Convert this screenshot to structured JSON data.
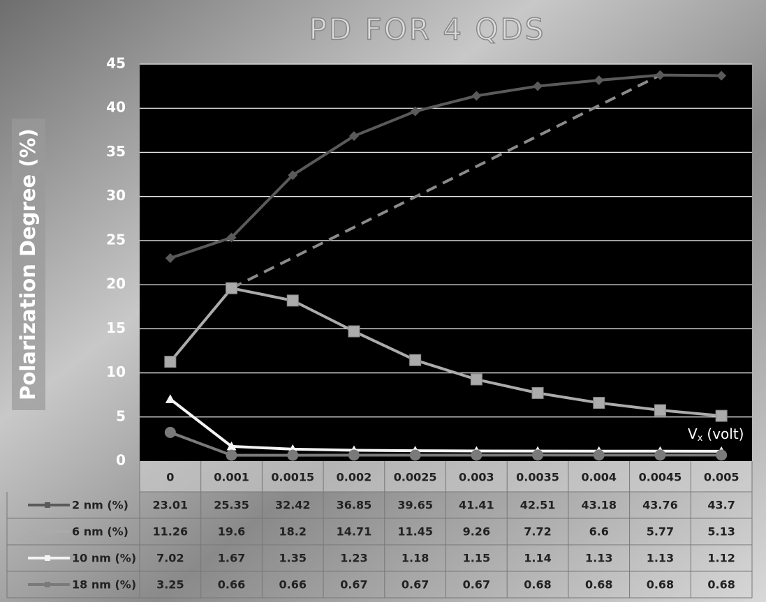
{
  "chart_data": {
    "type": "line",
    "title": "PD FOR 4 QDS",
    "y_label": "Polarization Degree (%)",
    "x_label": [
      "V",
      "x",
      "(volt)"
    ],
    "categories": [
      "0",
      "0.001",
      "0.0015",
      "0.002",
      "0.0025",
      "0.003",
      "0.0035",
      "0.004",
      "0.0045",
      "0.005"
    ],
    "ylim": [
      0,
      45
    ],
    "yticks": [
      0,
      5,
      10,
      15,
      20,
      25,
      30,
      35,
      40,
      45
    ],
    "grid": true,
    "series": [
      {
        "name": "2 nm (%)",
        "color": "#5a5a5a",
        "marker": "diamond",
        "values": [
          23.01,
          25.35,
          32.42,
          36.85,
          39.65,
          41.41,
          42.51,
          43.18,
          43.76,
          43.7
        ]
      },
      {
        "name": "6 nm (%)",
        "color": "#ababab",
        "marker": "square",
        "values": [
          11.26,
          19.6,
          18.2,
          14.71,
          11.45,
          9.26,
          7.72,
          6.6,
          5.77,
          5.13
        ]
      },
      {
        "name": "10 nm (%)",
        "color": "#f4f4f4",
        "marker": "triangle",
        "values": [
          7.02,
          1.67,
          1.35,
          1.23,
          1.18,
          1.15,
          1.14,
          1.13,
          1.13,
          1.12
        ]
      },
      {
        "name": "18 nm (%)",
        "color": "#7a7a7a",
        "marker": "circle",
        "values": [
          3.25,
          0.66,
          0.66,
          0.67,
          0.67,
          0.67,
          0.68,
          0.68,
          0.68,
          0.68
        ]
      }
    ]
  }
}
